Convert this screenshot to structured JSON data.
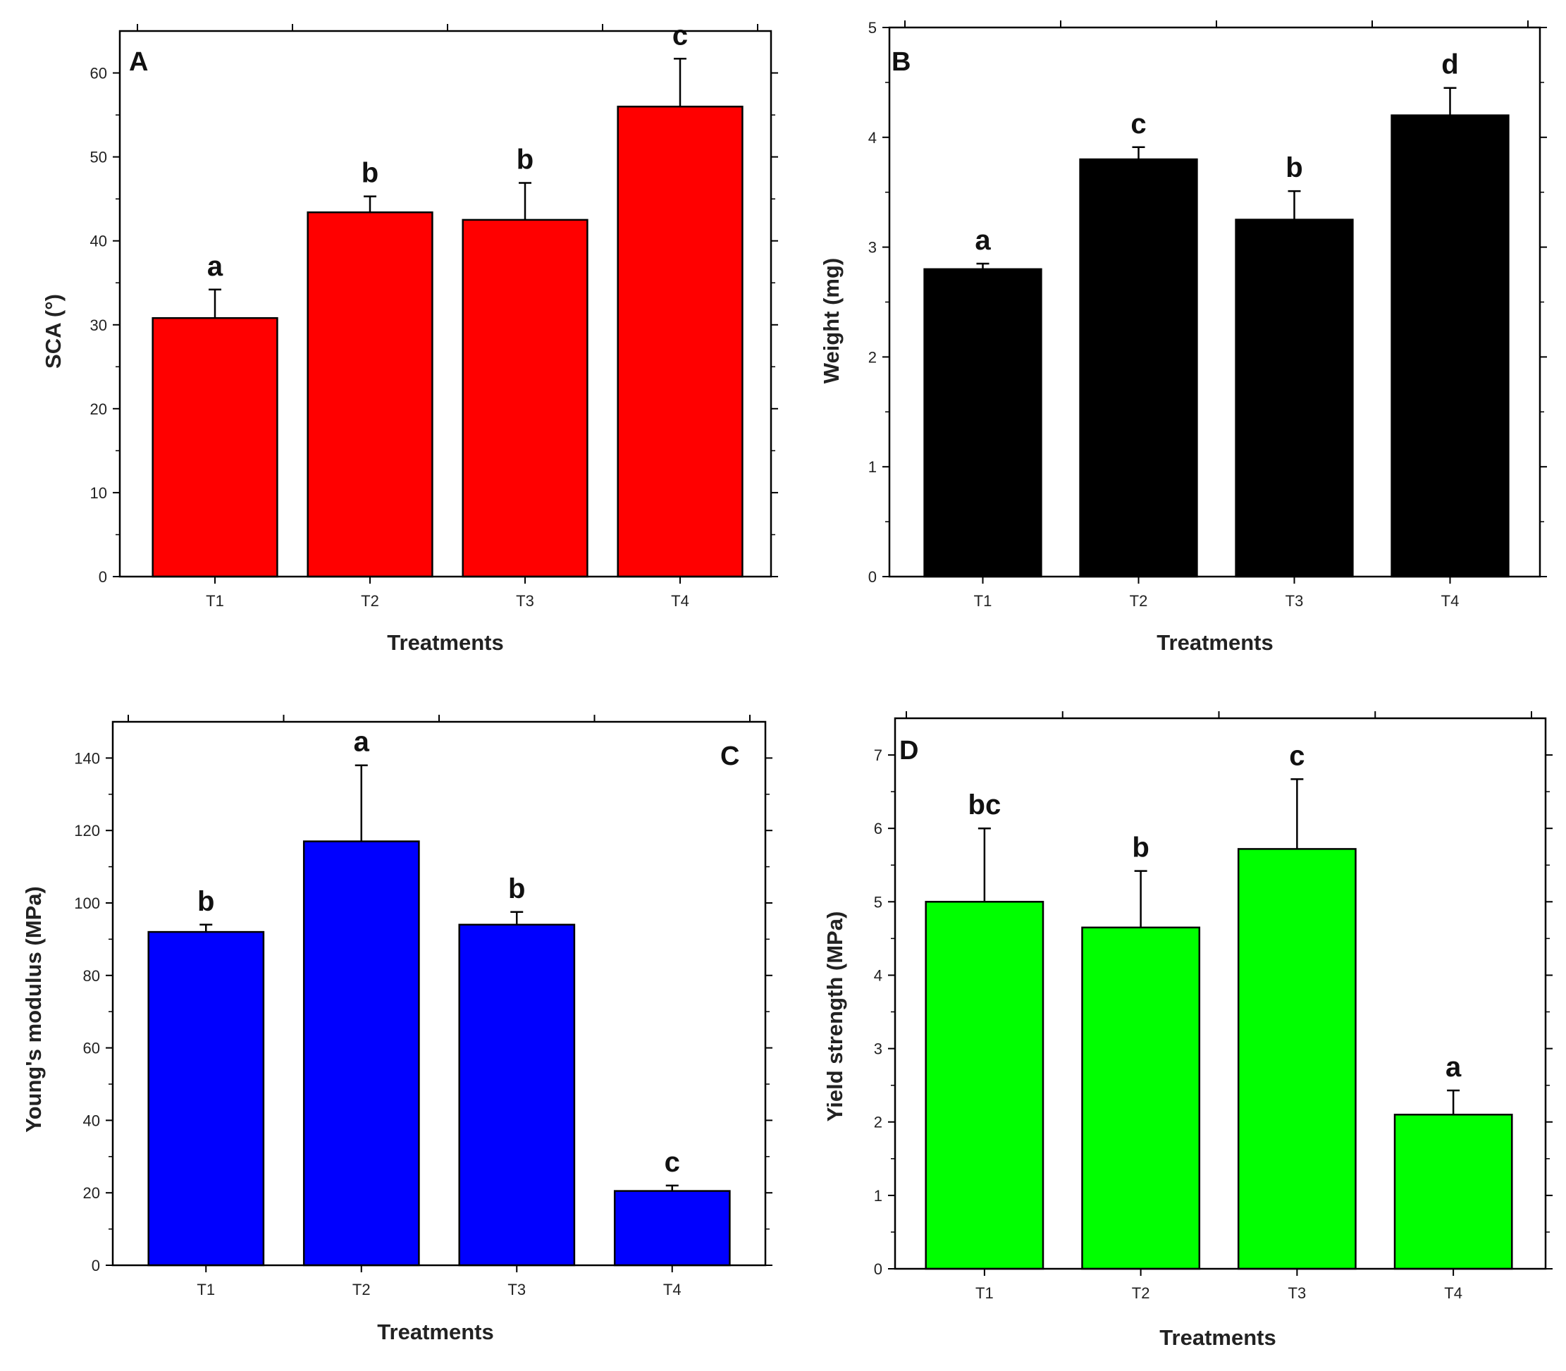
{
  "chart_data": [
    {
      "type": "bar",
      "panel": "A",
      "categories": [
        "T1",
        "T2",
        "T3",
        "T4"
      ],
      "values": [
        30.8,
        43.4,
        42.5,
        56.0
      ],
      "errors": [
        3.4,
        1.9,
        4.4,
        5.7
      ],
      "significance": [
        "a",
        "b",
        "b",
        "c"
      ],
      "xlabel": "Treatments",
      "ylabel": "SCA (°)",
      "ylim": [
        0,
        65
      ],
      "yticks": [
        0,
        10,
        20,
        30,
        40,
        50,
        60
      ],
      "bar_color": "#ff0000"
    },
    {
      "type": "bar",
      "panel": "B",
      "categories": [
        "T1",
        "T2",
        "T3",
        "T4"
      ],
      "values": [
        2.8,
        3.8,
        3.25,
        4.2
      ],
      "errors": [
        0.05,
        0.11,
        0.26,
        0.25
      ],
      "significance": [
        "a",
        "c",
        "b",
        "d"
      ],
      "xlabel": "Treatments",
      "ylabel": "Weight (mg)",
      "ylim": [
        0,
        5
      ],
      "yticks": [
        0,
        1,
        2,
        3,
        4,
        5
      ],
      "bar_color": "#000000"
    },
    {
      "type": "bar",
      "panel": "C",
      "categories": [
        "T1",
        "T2",
        "T3",
        "T4"
      ],
      "values": [
        92,
        117,
        94,
        20.5
      ],
      "errors": [
        2.0,
        21.0,
        3.5,
        1.5
      ],
      "significance": [
        "b",
        "a",
        "b",
        "c"
      ],
      "xlabel": "Treatments",
      "ylabel": "Young's modulus (MPa)",
      "ylim": [
        0,
        150
      ],
      "yticks": [
        0,
        20,
        40,
        60,
        80,
        100,
        120,
        140
      ],
      "bar_color": "#0000ff"
    },
    {
      "type": "bar",
      "panel": "D",
      "categories": [
        "T1",
        "T2",
        "T3",
        "T4"
      ],
      "values": [
        5.0,
        4.65,
        5.72,
        2.1
      ],
      "errors": [
        1.0,
        0.77,
        0.95,
        0.33
      ],
      "significance": [
        "bc",
        "b",
        "c",
        "a"
      ],
      "xlabel": "Treatments",
      "ylabel": "Yield strength (MPa)",
      "ylim": [
        0,
        7.5
      ],
      "yticks": [
        0,
        1,
        2,
        3,
        4,
        5,
        6,
        7
      ],
      "bar_color": "#00ff00"
    }
  ]
}
